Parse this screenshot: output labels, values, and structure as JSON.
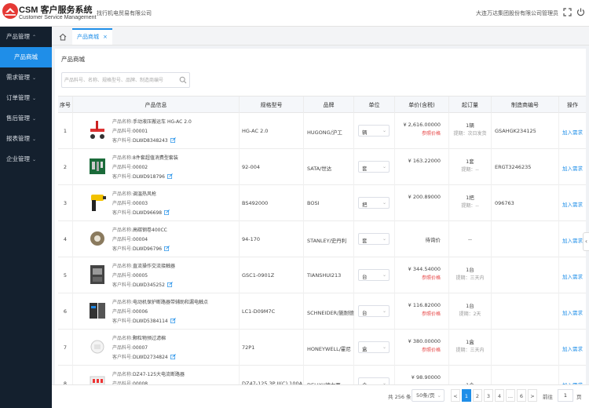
{
  "header": {
    "brand_title": "CSM 客户服务系统",
    "brand_sub": "Customer Service Management",
    "buyer_company": "找行机电贸易有限公司",
    "seller_company": "大连万达集团股份有限公司",
    "user": "管理员",
    "icons": [
      "logo-icon",
      "fullscreen-icon",
      "logout-icon"
    ]
  },
  "sidebar": {
    "items": [
      {
        "label": "产品管理",
        "caret": "^",
        "type": "group"
      },
      {
        "label": "产品商城",
        "caret": "",
        "type": "sub",
        "active": true
      },
      {
        "label": "需求管理",
        "caret": "v",
        "type": "group"
      },
      {
        "label": "订单管理",
        "caret": "v",
        "type": "group"
      },
      {
        "label": "售后管理",
        "caret": "v",
        "type": "group"
      },
      {
        "label": "报表管理",
        "caret": "v",
        "type": "group"
      },
      {
        "label": "企业管理",
        "caret": "v",
        "type": "group"
      }
    ]
  },
  "tabs": {
    "home_icon": "home-icon",
    "current": "产品商城",
    "close": "×"
  },
  "page": {
    "title": "产品商城",
    "search_placeholder": "产品料号、名称、规格型号、品牌、制造商编号"
  },
  "table": {
    "headers": [
      "序号",
      "产品信息",
      "规格型号",
      "品牌",
      "单位",
      "单价(含税)",
      "起订量",
      "制造商编号",
      "操作"
    ],
    "info_labels": {
      "name": "产品名称:",
      "code": "产品料号:",
      "customer": "客户料号:"
    },
    "rows": [
      {
        "idx": "1",
        "name": "手动液压搬运车 HG-AC 2.0",
        "code": "00001",
        "customer": "DLWD8348243",
        "spec": "HG-AC 2.0",
        "brand": "HUGONG/沪工",
        "unit": "辆",
        "price": "¥ 2,616.00000",
        "price_link": "参照价格",
        "moq": "1辆",
        "moq_sub": "提期：次日发货",
        "mfr": "GSAHGK234125",
        "action": "加入需求"
      },
      {
        "idx": "2",
        "name": "8件套超值消费型套装",
        "code": "00002",
        "customer": "DLWD918796",
        "spec": "92-004",
        "brand": "SATA/世达",
        "unit": "套",
        "price": "¥ 163.22000",
        "price_link": "",
        "moq": "1套",
        "moq_sub": "提期：--",
        "mfr": "ERGT3246235",
        "action": "加入需求"
      },
      {
        "idx": "3",
        "name": "调温热风枪",
        "code": "00003",
        "customer": "DLWD96698",
        "spec": "BS492000",
        "brand": "BOSI",
        "unit": "把",
        "price": "¥ 200.89000",
        "price_link": "",
        "moq": "1把",
        "moq_sub": "提期：--",
        "mfr": "096763",
        "action": "加入需求"
      },
      {
        "idx": "4",
        "name": "高碳钢卷400CC",
        "code": "00004",
        "customer": "DLWD96796",
        "spec": "94-170",
        "brand": "STANLEY/史丹利",
        "unit": "套",
        "price": "待询价",
        "price_link": "",
        "moq": "--",
        "moq_sub": "",
        "mfr": "",
        "action": "加入需求"
      },
      {
        "idx": "5",
        "name": "直流操作交流接触器",
        "code": "00005",
        "customer": "DLWD345252",
        "spec": "GSC1-0901Z",
        "brand": "TIANSHUI213",
        "unit": "台",
        "price": "¥ 344.54000",
        "price_link": "参照价格",
        "moq": "1台",
        "moq_sub": "提期：三天内",
        "mfr": "",
        "action": "加入需求"
      },
      {
        "idx": "6",
        "name": "电动机保护断路器带辅助和漏电触点",
        "code": "00006",
        "customer": "DLWD5384114",
        "spec": "LC1-D09M7C",
        "brand": "SCHNEIDER/施耐德",
        "unit": "台",
        "price": "¥ 116.82000",
        "price_link": "参照价格",
        "moq": "1台",
        "moq_sub": "提期：2天",
        "mfr": "",
        "action": "加入需求"
      },
      {
        "idx": "7",
        "name": "颗粒物预过滤棉",
        "code": "00007",
        "customer": "DLWD2734824",
        "spec": "72P1",
        "brand": "HONEYWELL/霍尼",
        "unit": "盒",
        "price": "¥ 380.00000",
        "price_link": "参照价格",
        "moq": "1盒",
        "moq_sub": "提期：三天内",
        "mfr": "",
        "action": "加入需求"
      },
      {
        "idx": "8",
        "name": "DZ47-125大电流断路器",
        "code": "00008",
        "customer": "",
        "spec": "DZ47-125 3P II(C) 100A",
        "brand": "DELIXI/德力西",
        "unit": "个",
        "price": "¥ 98.90000",
        "price_link": "",
        "moq": "1个",
        "moq_sub": "",
        "mfr": "",
        "action": "加入需求"
      }
    ]
  },
  "pagination": {
    "total": "共 256 条",
    "size": "50条/页",
    "pages": [
      "<",
      "1",
      "2",
      "3",
      "4",
      "...",
      "6",
      ">"
    ],
    "active_page": "1",
    "goto_label": "前往",
    "goto_value": "1",
    "page_suffix": "页"
  },
  "colors": {
    "accent": "#1f8ee8",
    "sidebar": "#14202e",
    "price_link": "#e64545"
  }
}
